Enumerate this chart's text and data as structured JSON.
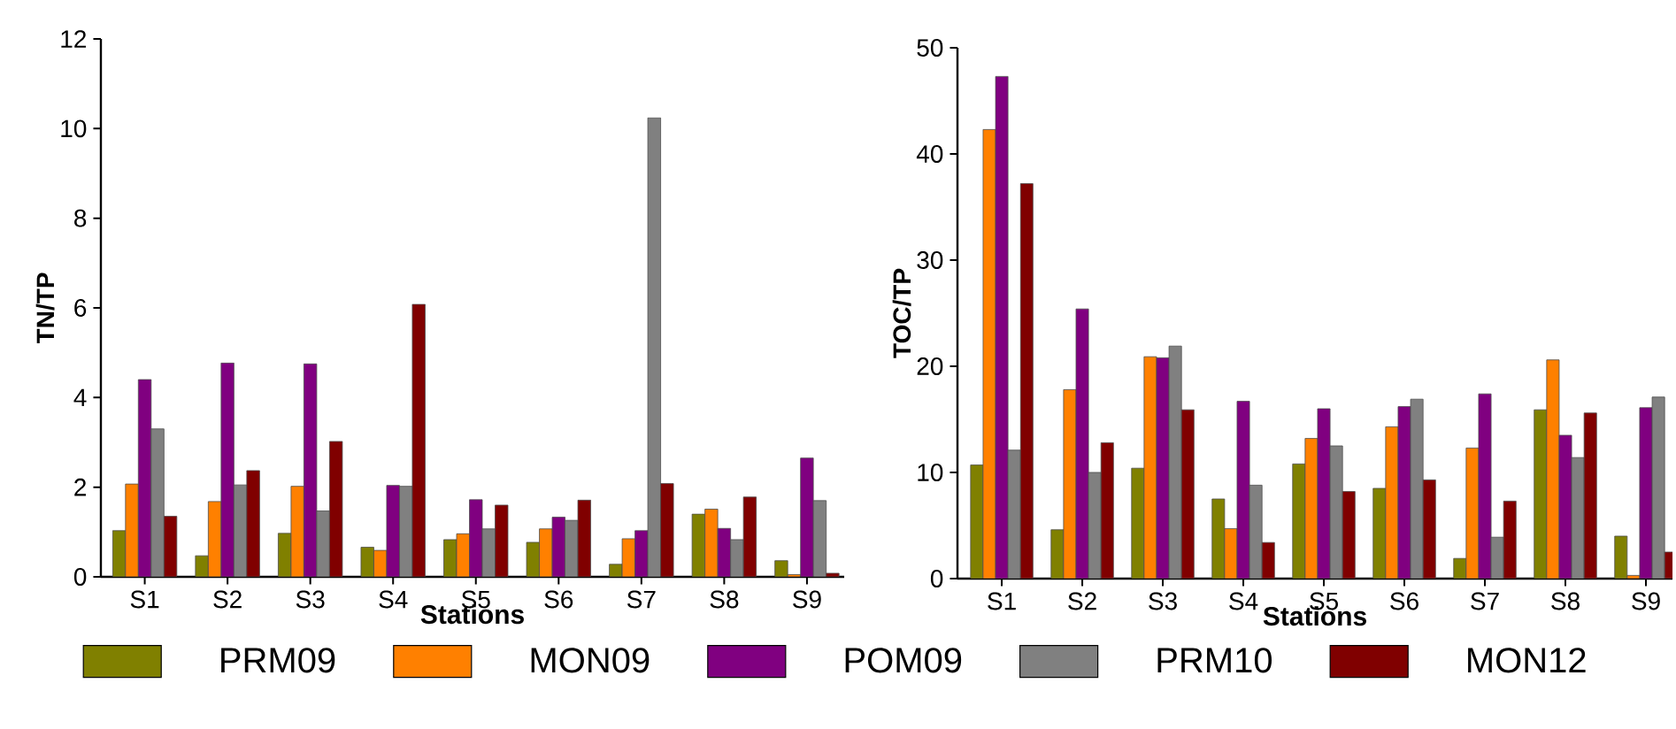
{
  "chart_data": [
    {
      "type": "bar",
      "xlabel": "Stations",
      "ylabel": "TN/TP",
      "categories": [
        "S1",
        "S2",
        "S3",
        "S4",
        "S5",
        "S6",
        "S7",
        "S8",
        "S9"
      ],
      "ylim": [
        0,
        12
      ],
      "yticks": [
        0,
        2,
        4,
        6,
        8,
        10,
        12
      ],
      "grid": false,
      "legend": "bottom",
      "series": [
        {
          "name": "PRM09",
          "color": "#808000",
          "values": [
            1.03,
            0.47,
            0.97,
            0.66,
            0.83,
            0.77,
            0.28,
            1.4,
            0.36
          ]
        },
        {
          "name": "MON09",
          "color": "#ff8000",
          "values": [
            2.07,
            1.68,
            2.02,
            0.59,
            0.96,
            1.07,
            0.85,
            1.51,
            0.05
          ]
        },
        {
          "name": "POM09",
          "color": "#800080",
          "values": [
            4.4,
            4.77,
            4.75,
            2.04,
            1.72,
            1.33,
            1.03,
            1.08,
            2.65
          ]
        },
        {
          "name": "PRM10",
          "color": "#808080",
          "values": [
            3.3,
            2.05,
            1.47,
            2.02,
            1.07,
            1.26,
            10.24,
            0.83,
            1.7
          ]
        },
        {
          "name": "MON12",
          "color": "#800000",
          "values": [
            1.35,
            2.37,
            3.02,
            6.08,
            1.6,
            1.71,
            2.08,
            1.78,
            0.08
          ]
        }
      ]
    },
    {
      "type": "bar",
      "xlabel": "Stations",
      "ylabel": "TOC/TP",
      "categories": [
        "S1",
        "S2",
        "S3",
        "S4",
        "S5",
        "S6",
        "S7",
        "S8",
        "S9"
      ],
      "ylim": [
        0,
        50
      ],
      "yticks": [
        0,
        10,
        20,
        30,
        40,
        50
      ],
      "grid": false,
      "series": [
        {
          "color": "#808000",
          "values": [
            10.7,
            4.6,
            10.4,
            7.5,
            10.8,
            8.5,
            1.9,
            15.9,
            4.0
          ]
        },
        {
          "color": "#ff8000",
          "values": [
            42.3,
            17.8,
            20.9,
            4.7,
            13.2,
            14.3,
            12.3,
            20.6,
            0.3
          ]
        },
        {
          "color": "#800080",
          "values": [
            47.3,
            25.4,
            20.8,
            16.7,
            16.0,
            16.2,
            17.4,
            13.5,
            16.1
          ]
        },
        {
          "color": "#808080",
          "values": [
            12.1,
            10.0,
            21.9,
            8.8,
            12.5,
            16.9,
            3.9,
            11.4,
            17.1
          ]
        },
        {
          "color": "#800000",
          "values": [
            37.2,
            12.8,
            15.9,
            3.4,
            8.2,
            9.3,
            7.3,
            15.6,
            2.5
          ]
        }
      ]
    }
  ]
}
